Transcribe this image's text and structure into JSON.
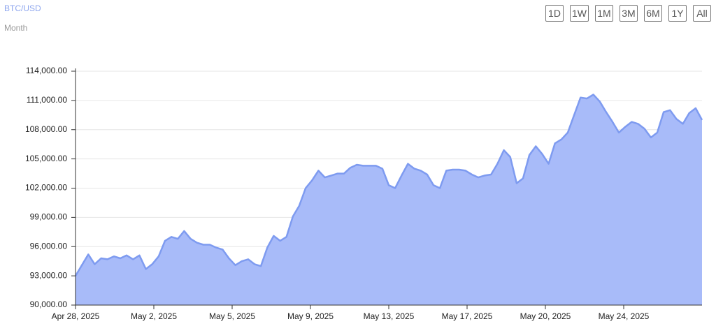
{
  "controls": {
    "range_buttons": [
      "1D",
      "1W",
      "1M",
      "3M",
      "6M",
      "1Y",
      "All"
    ]
  },
  "chart_data": {
    "type": "area",
    "title": "BTC/USD",
    "subtitle": "Month",
    "xtick_labels": [
      "Apr 28, 2025",
      "May 2, 2025",
      "May 5, 2025",
      "May 9, 2025",
      "May 13, 2025",
      "May 17, 2025",
      "May 20, 2025",
      "May 24, 2025"
    ],
    "values": [
      93000,
      94100,
      95200,
      94200,
      94800,
      94700,
      95000,
      94800,
      95100,
      94700,
      95100,
      93700,
      94200,
      95000,
      96600,
      97000,
      96800,
      97600,
      96800,
      96400,
      96200,
      96200,
      95900,
      95700,
      94800,
      94100,
      94500,
      94700,
      94200,
      94000,
      95900,
      97100,
      96600,
      97000,
      99100,
      100200,
      102000,
      102800,
      103800,
      103100,
      103300,
      103500,
      103500,
      104100,
      104400,
      104300,
      104300,
      104300,
      104000,
      102300,
      102000,
      103300,
      104500,
      104000,
      103800,
      103400,
      102300,
      102000,
      103800,
      103900,
      103900,
      103800,
      103400,
      103100,
      103300,
      103400,
      104500,
      105900,
      105200,
      102500,
      103000,
      105400,
      106300,
      105500,
      104500,
      106600,
      107000,
      107700,
      109500,
      111300,
      111200,
      111600,
      110900,
      109800,
      108800,
      107700,
      108300,
      108800,
      108600,
      108100,
      107200,
      107700,
      109800,
      110000,
      109100,
      108600,
      109700,
      110200,
      109000
    ],
    "line_color": "#7e9bf0",
    "fill_color": "#a8bbf9",
    "ylim": [
      90000,
      114000
    ],
    "yticks": [
      {
        "value": 90000,
        "label": "90,000.00"
      },
      {
        "value": 93000,
        "label": "93,000.00"
      },
      {
        "value": 96000,
        "label": "96,000.00"
      },
      {
        "value": 99000,
        "label": "99,000.00"
      },
      {
        "value": 102000,
        "label": "102,000.00"
      },
      {
        "value": 105000,
        "label": "105,000.00"
      },
      {
        "value": 108000,
        "label": "108,000.00"
      },
      {
        "value": 111000,
        "label": "111,000.00"
      },
      {
        "value": 114000,
        "label": "114,000.00"
      }
    ],
    "grid": true
  }
}
